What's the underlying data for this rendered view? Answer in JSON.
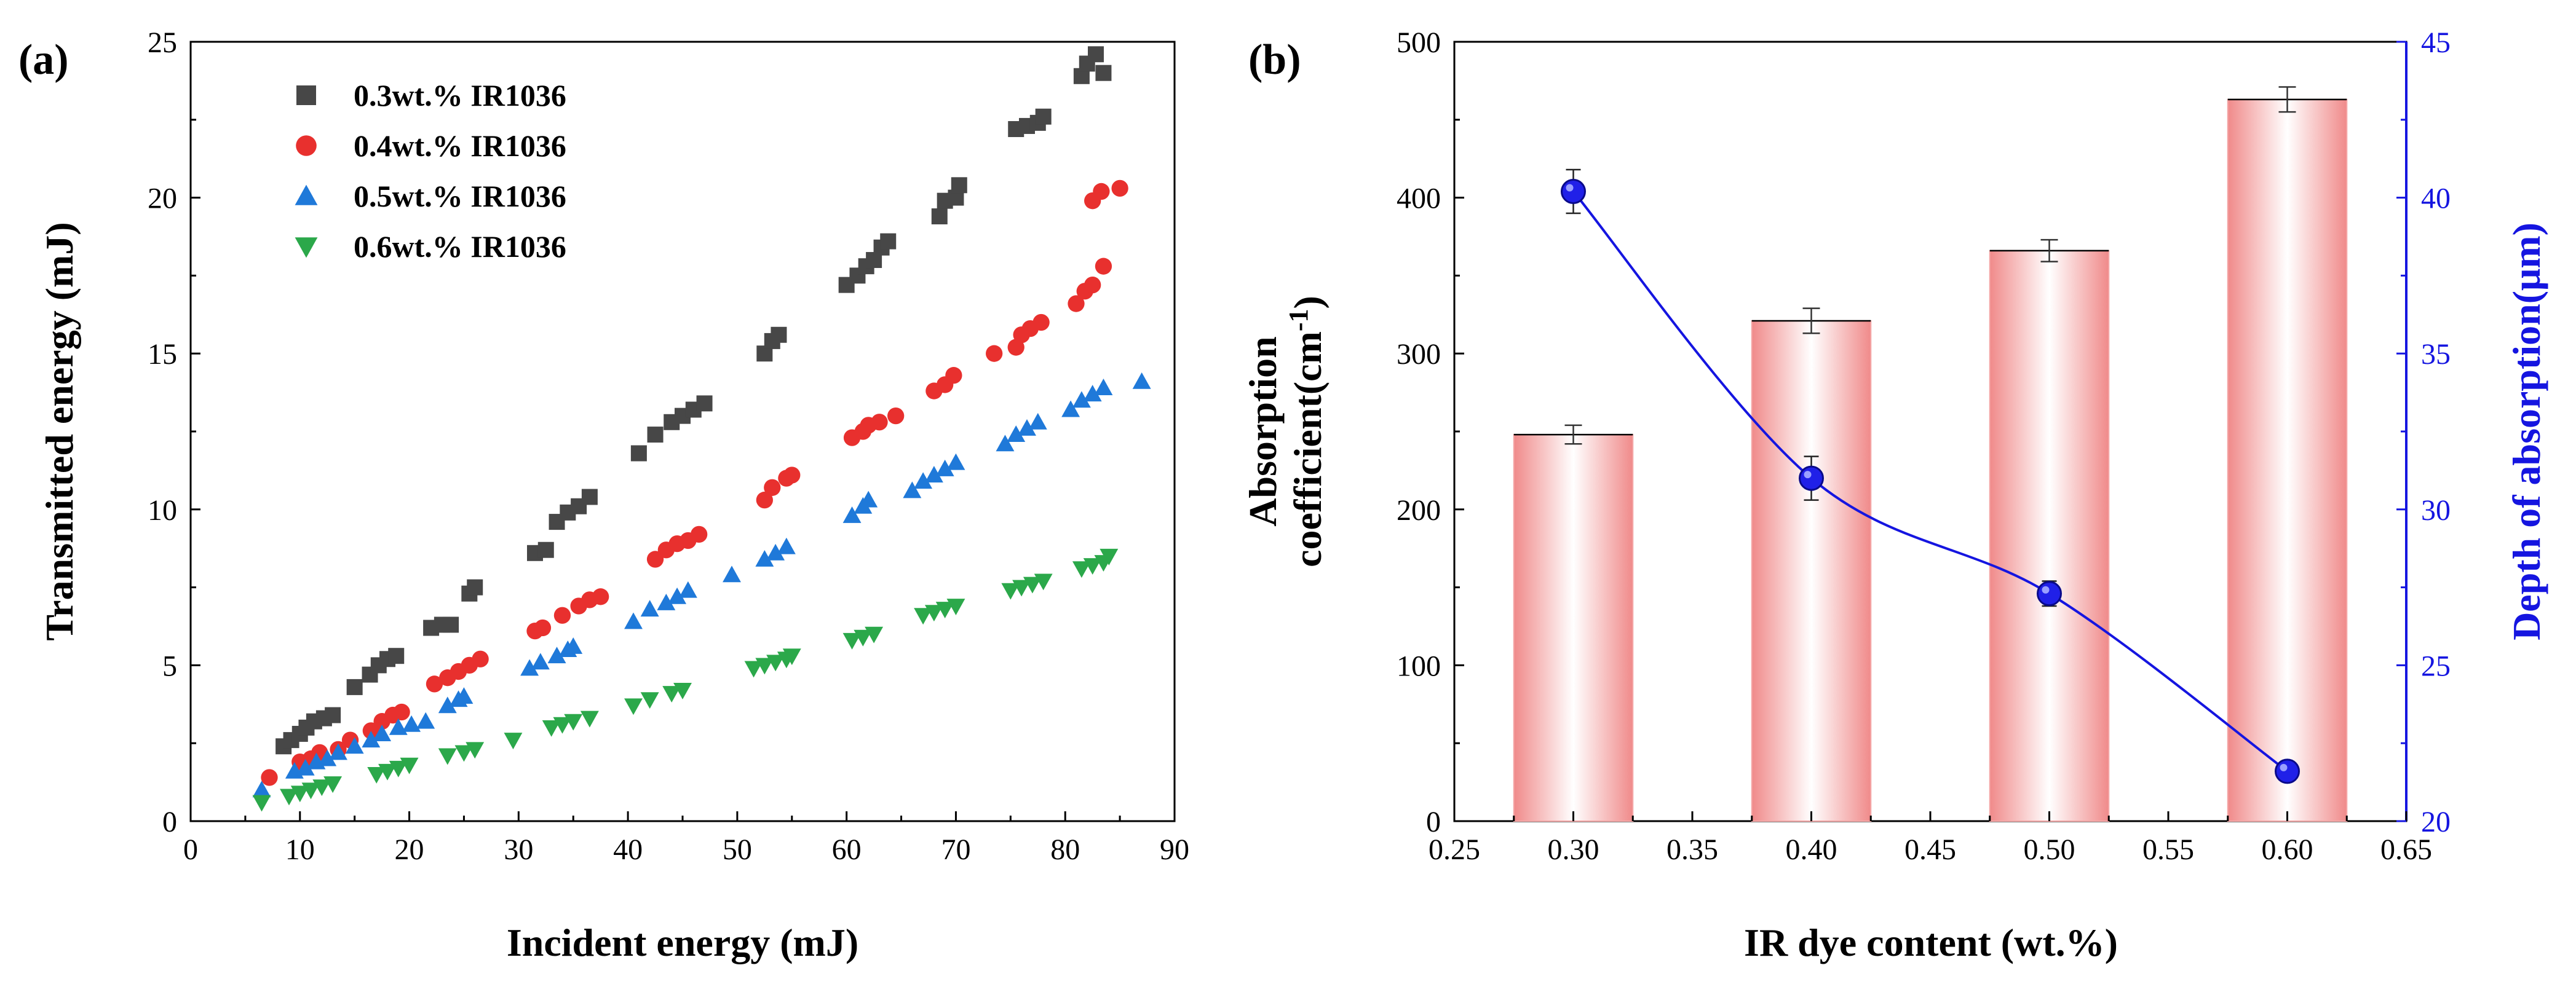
{
  "chart_data": [
    {
      "panel": "(a)",
      "type": "scatter",
      "title": "",
      "xlabel": "Incident energy (mJ)",
      "ylabel": "Transmitted energy (mJ)",
      "xlim": [
        0,
        90
      ],
      "ylim": [
        0,
        25
      ],
      "xticks": [
        "0",
        "10",
        "20",
        "30",
        "40",
        "50",
        "60",
        "70",
        "80",
        "90"
      ],
      "yticks": [
        "0",
        "5",
        "10",
        "15",
        "20",
        "25"
      ],
      "legend_position": "top-left",
      "series": [
        {
          "name": "0.3wt.% IR1036",
          "color": "#474747",
          "marker": "square",
          "points": [
            [
              8.5,
              2.4
            ],
            [
              9.2,
              2.6
            ],
            [
              10,
              2.8
            ],
            [
              10.6,
              3.0
            ],
            [
              11.3,
              3.2
            ],
            [
              12.2,
              3.3
            ],
            [
              13,
              3.4
            ],
            [
              15,
              4.3
            ],
            [
              16.4,
              4.7
            ],
            [
              17.2,
              5.0
            ],
            [
              18,
              5.2
            ],
            [
              18.8,
              5.3
            ],
            [
              22,
              6.2
            ],
            [
              23,
              6.3
            ],
            [
              23.8,
              6.3
            ],
            [
              25.5,
              7.3
            ],
            [
              26,
              7.5
            ],
            [
              31.5,
              8.6
            ],
            [
              32.5,
              8.7
            ],
            [
              33.5,
              9.6
            ],
            [
              34.5,
              9.9
            ],
            [
              35.5,
              10.1
            ],
            [
              36.5,
              10.4
            ],
            [
              41,
              11.8
            ],
            [
              42.5,
              12.4
            ],
            [
              44,
              12.8
            ],
            [
              45,
              13.0
            ],
            [
              46,
              13.2
            ],
            [
              47,
              13.4
            ],
            [
              52.5,
              15.0
            ],
            [
              53.2,
              15.4
            ],
            [
              53.8,
              15.6
            ],
            [
              60,
              17.2
            ],
            [
              61,
              17.5
            ],
            [
              61.8,
              17.8
            ],
            [
              62.5,
              18.0
            ],
            [
              63.2,
              18.4
            ],
            [
              63.8,
              18.6
            ],
            [
              68.5,
              19.4
            ],
            [
              69,
              19.9
            ],
            [
              70,
              20.0
            ],
            [
              70.3,
              20.4
            ],
            [
              75.5,
              22.2
            ],
            [
              76.5,
              22.3
            ],
            [
              77.5,
              22.4
            ],
            [
              78,
              22.6
            ],
            [
              81.5,
              23.9
            ],
            [
              82,
              24.3
            ],
            [
              82.8,
              24.6
            ],
            [
              83.5,
              24.0
            ]
          ]
        },
        {
          "name": "0.4wt.% IR1036",
          "color": "#e8302e",
          "marker": "circle",
          "points": [
            [
              7.2,
              1.4
            ],
            [
              10,
              1.9
            ],
            [
              11,
              2.0
            ],
            [
              11.8,
              2.2
            ],
            [
              13.5,
              2.3
            ],
            [
              14.6,
              2.6
            ],
            [
              16.5,
              2.9
            ],
            [
              17.5,
              3.2
            ],
            [
              18.5,
              3.4
            ],
            [
              19.3,
              3.5
            ],
            [
              22.3,
              4.4
            ],
            [
              23.5,
              4.6
            ],
            [
              24.5,
              4.8
            ],
            [
              25.5,
              5.0
            ],
            [
              26.5,
              5.2
            ],
            [
              31.5,
              6.1
            ],
            [
              32.2,
              6.2
            ],
            [
              34,
              6.6
            ],
            [
              35.5,
              6.9
            ],
            [
              36.5,
              7.1
            ],
            [
              37.5,
              7.2
            ],
            [
              42.5,
              8.4
            ],
            [
              43.5,
              8.7
            ],
            [
              44.5,
              8.9
            ],
            [
              45.5,
              9.0
            ],
            [
              46.5,
              9.2
            ],
            [
              52.5,
              10.3
            ],
            [
              53.2,
              10.7
            ],
            [
              54.5,
              11.0
            ],
            [
              55,
              11.1
            ],
            [
              60.5,
              12.3
            ],
            [
              61.5,
              12.5
            ],
            [
              62,
              12.7
            ],
            [
              63,
              12.8
            ],
            [
              64.5,
              13.0
            ],
            [
              68,
              13.8
            ],
            [
              69,
              14.0
            ],
            [
              69.8,
              14.3
            ],
            [
              73.5,
              15.0
            ],
            [
              75.5,
              15.2
            ],
            [
              76,
              15.6
            ],
            [
              76.8,
              15.8
            ],
            [
              77.8,
              16.0
            ],
            [
              81,
              16.6
            ],
            [
              81.8,
              17.0
            ],
            [
              82.5,
              17.2
            ],
            [
              83.5,
              17.8
            ],
            [
              82.5,
              19.9
            ],
            [
              83.3,
              20.2
            ],
            [
              85,
              20.3
            ]
          ]
        },
        {
          "name": "0.5wt.% IR1036",
          "color": "#1f79d9",
          "marker": "triangle-up",
          "points": [
            [
              6.5,
              1.0
            ],
            [
              9.5,
              1.6
            ],
            [
              10.5,
              1.7
            ],
            [
              11.5,
              1.9
            ],
            [
              12.5,
              2.0
            ],
            [
              13.5,
              2.2
            ],
            [
              15,
              2.4
            ],
            [
              16.5,
              2.6
            ],
            [
              17.5,
              2.8
            ],
            [
              19,
              3.0
            ],
            [
              20.2,
              3.1
            ],
            [
              21.5,
              3.2
            ],
            [
              23.5,
              3.7
            ],
            [
              24.5,
              3.9
            ],
            [
              25,
              4.0
            ],
            [
              31,
              4.9
            ],
            [
              32,
              5.1
            ],
            [
              33.5,
              5.3
            ],
            [
              34.5,
              5.5
            ],
            [
              35,
              5.6
            ],
            [
              40.5,
              6.4
            ],
            [
              42,
              6.8
            ],
            [
              43.5,
              7.0
            ],
            [
              44.5,
              7.2
            ],
            [
              45.5,
              7.4
            ],
            [
              49.5,
              7.9
            ],
            [
              52.5,
              8.4
            ],
            [
              53.5,
              8.6
            ],
            [
              54.5,
              8.8
            ],
            [
              60.5,
              9.8
            ],
            [
              61.5,
              10.1
            ],
            [
              62,
              10.3
            ],
            [
              66,
              10.6
            ],
            [
              67,
              10.9
            ],
            [
              68,
              11.1
            ],
            [
              69,
              11.3
            ],
            [
              70,
              11.5
            ],
            [
              74.5,
              12.1
            ],
            [
              75.5,
              12.4
            ],
            [
              76.5,
              12.6
            ],
            [
              77.5,
              12.8
            ],
            [
              80.5,
              13.2
            ],
            [
              81.5,
              13.5
            ],
            [
              82.5,
              13.7
            ],
            [
              83.5,
              13.9
            ],
            [
              87,
              14.1
            ]
          ]
        },
        {
          "name": "0.6wt.% IR1036",
          "color": "#2ba84a",
          "marker": "triangle-down",
          "points": [
            [
              6.5,
              0.6
            ],
            [
              9,
              0.8
            ],
            [
              10,
              0.9
            ],
            [
              11,
              1.0
            ],
            [
              12,
              1.1
            ],
            [
              13,
              1.2
            ],
            [
              17,
              1.5
            ],
            [
              18,
              1.6
            ],
            [
              19,
              1.7
            ],
            [
              20,
              1.8
            ],
            [
              23.5,
              2.1
            ],
            [
              25,
              2.2
            ],
            [
              26,
              2.3
            ],
            [
              29.5,
              2.6
            ],
            [
              33,
              3.0
            ],
            [
              34,
              3.1
            ],
            [
              35,
              3.2
            ],
            [
              36.5,
              3.3
            ],
            [
              40.5,
              3.7
            ],
            [
              42,
              3.9
            ],
            [
              44,
              4.1
            ],
            [
              45,
              4.2
            ],
            [
              51.5,
              4.9
            ],
            [
              52.5,
              5.0
            ],
            [
              53.5,
              5.1
            ],
            [
              54.5,
              5.2
            ],
            [
              55,
              5.3
            ],
            [
              60.5,
              5.8
            ],
            [
              61.5,
              5.9
            ],
            [
              62.5,
              6.0
            ],
            [
              67,
              6.6
            ],
            [
              68,
              6.7
            ],
            [
              69,
              6.8
            ],
            [
              70,
              6.9
            ],
            [
              75,
              7.4
            ],
            [
              76,
              7.5
            ],
            [
              77,
              7.6
            ],
            [
              78,
              7.7
            ],
            [
              81.5,
              8.1
            ],
            [
              82.5,
              8.2
            ],
            [
              83.5,
              8.3
            ],
            [
              84,
              8.5
            ]
          ]
        }
      ]
    },
    {
      "panel": "(b)",
      "type": "bar",
      "title": "",
      "xlabel": "IR dye content (wt.%)",
      "ylabel_lines": [
        "Absorption",
        "coefficient(cm",
        "-1",
        ")"
      ],
      "y2label": "Depth of absorption(μm)",
      "xlim": [
        0.25,
        0.65
      ],
      "ylim": [
        0,
        500
      ],
      "y2lim": [
        20,
        45
      ],
      "xticks": [
        "0.25",
        "0.30",
        "0.35",
        "0.40",
        "0.45",
        "0.50",
        "0.55",
        "0.60",
        "0.65"
      ],
      "yticks": [
        "0",
        "100",
        "200",
        "300",
        "400",
        "500"
      ],
      "y2ticks": [
        "20",
        "25",
        "30",
        "35",
        "40",
        "45"
      ],
      "bar_color": "#f08a8a",
      "line_color": "#1515e0",
      "categories": [
        0.3,
        0.4,
        0.5,
        0.6
      ],
      "bar_width": 0.05,
      "series": [
        {
          "name": "Absorption coefficient",
          "axis": "left",
          "values": [
            248,
            321,
            366,
            463
          ],
          "errors": [
            6,
            8,
            7,
            8
          ]
        },
        {
          "name": "Depth of absorption",
          "axis": "right",
          "values": [
            40.2,
            31.0,
            27.3,
            21.6
          ],
          "errors": [
            0.7,
            0.7,
            0.4,
            0.2
          ]
        }
      ]
    }
  ]
}
